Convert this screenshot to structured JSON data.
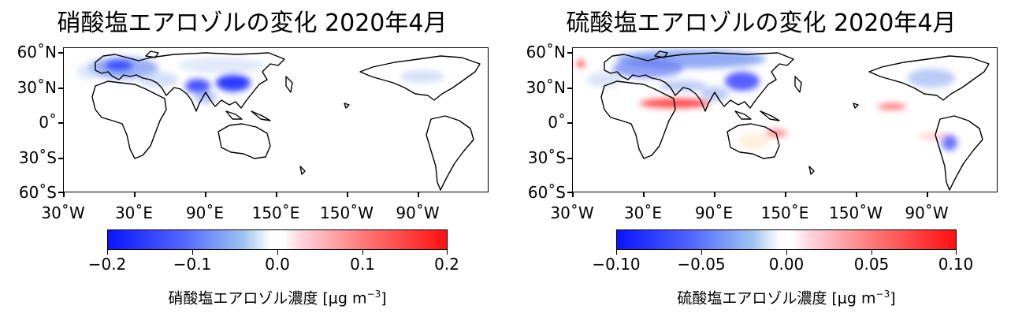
{
  "panels": [
    {
      "title": "硝酸塩エアロゾルの変化 2020年4月",
      "lat_labels": [
        "60˚N",
        "30˚N",
        "0˚",
        "30˚S",
        "60˚S"
      ],
      "lon_labels": [
        "30˚W",
        "30˚E",
        "90˚E",
        "150˚E",
        "150˚W",
        "90˚W"
      ],
      "colorbar_ticks": [
        "−0.2",
        "−0.1",
        "0.0",
        "0.1",
        "0.2"
      ],
      "colorbar_label": "硝酸塩エアロゾル濃度 [μg m",
      "colorbar_unit_exp": "−3",
      "colorbar_close": "]",
      "colorbar_range": [
        -0.2,
        0.2
      ]
    },
    {
      "title": "硫酸塩エアロゾルの変化 2020年4月",
      "lat_labels": [
        "60˚N",
        "30˚N",
        "0˚",
        "30˚S",
        "60˚S"
      ],
      "lon_labels": [
        "30˚W",
        "30˚E",
        "90˚E",
        "150˚E",
        "150˚W",
        "90˚W"
      ],
      "colorbar_ticks": [
        "−0.10",
        "−0.05",
        "0.00",
        "0.05",
        "0.10"
      ],
      "colorbar_label": "硫酸塩エアロゾル濃度 [μg m",
      "colorbar_unit_exp": "−3",
      "colorbar_close": "]",
      "colorbar_range": [
        -0.1,
        0.1
      ]
    }
  ],
  "colors": {
    "decrease": "#0a14ff",
    "neutral": "#ffffff",
    "increase": "#ff1010",
    "coastline": "#000000"
  }
}
